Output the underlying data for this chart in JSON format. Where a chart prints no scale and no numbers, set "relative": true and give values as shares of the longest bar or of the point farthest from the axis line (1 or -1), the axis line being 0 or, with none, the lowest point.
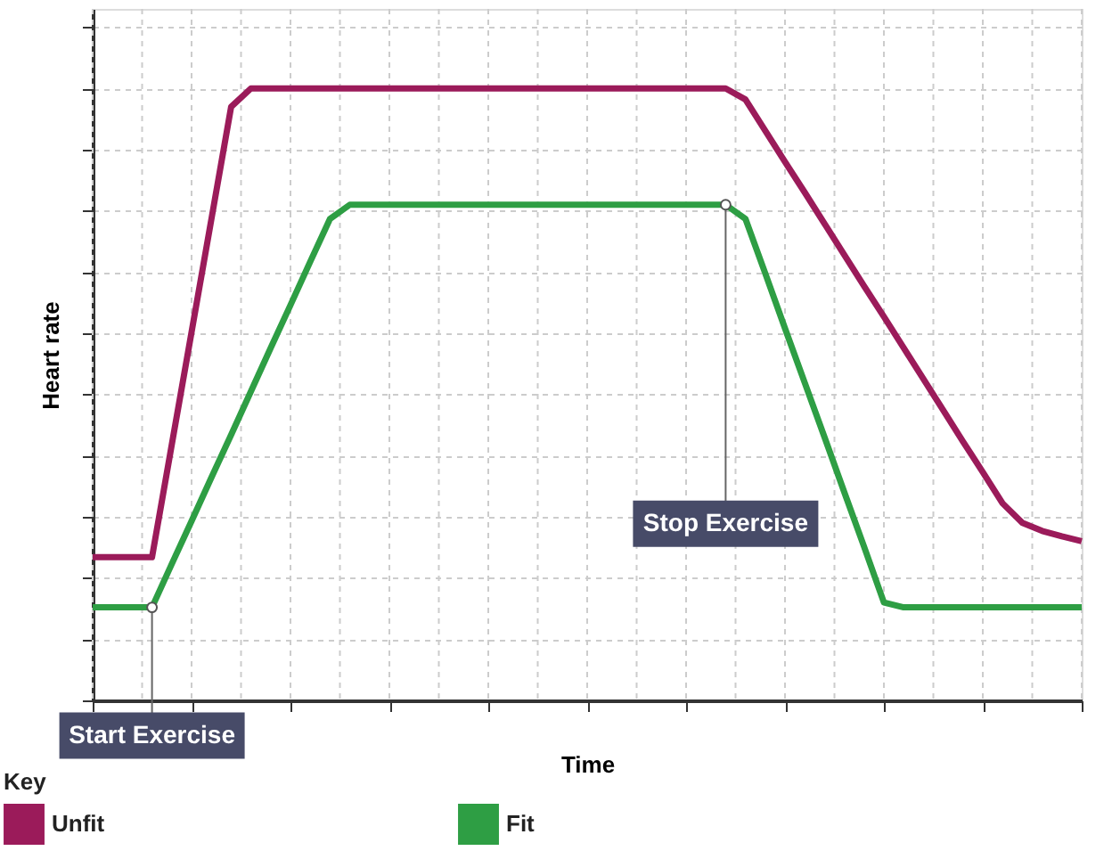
{
  "chart_data": {
    "type": "line",
    "relative": true,
    "xlabel": "Time",
    "ylabel": "Heart rate",
    "legend_title": "Key",
    "legend": "bottom",
    "grid": true,
    "marker": "none",
    "line_style": "solid",
    "categories": [
      null,
      null,
      null,
      null,
      null,
      null,
      null,
      null,
      null,
      null,
      null,
      null,
      null,
      null,
      null,
      null,
      null,
      null,
      null,
      null,
      null,
      null,
      null,
      null,
      null,
      null,
      null,
      null,
      null,
      null,
      null,
      null,
      null,
      null,
      null,
      null,
      null,
      null,
      null,
      null,
      null,
      null,
      null,
      null,
      null,
      null,
      null,
      null,
      null,
      null,
      null
    ],
    "series": [
      {
        "name": "Unfit",
        "color": "#9b1b5a",
        "values": [
          0.234,
          0.234,
          0.234,
          0.234,
          0.418,
          0.602,
          0.786,
          0.97,
          1,
          1,
          1,
          1,
          1,
          1,
          1,
          1,
          1,
          1,
          1,
          1,
          1,
          1,
          1,
          1,
          1,
          1,
          1,
          1,
          1,
          1,
          1,
          1,
          1,
          0.982,
          0.931,
          0.88,
          0.83,
          0.779,
          0.728,
          0.677,
          0.627,
          0.576,
          0.525,
          0.474,
          0.423,
          0.373,
          0.322,
          0.29,
          0.277,
          0.268,
          0.26
        ]
      },
      {
        "name": "Fit",
        "color": "#2e9e44",
        "values": [
          0.152,
          0.152,
          0.152,
          0.152,
          0.223,
          0.293,
          0.364,
          0.434,
          0.505,
          0.576,
          0.646,
          0.717,
          0.787,
          0.81,
          0.81,
          0.81,
          0.81,
          0.81,
          0.81,
          0.81,
          0.81,
          0.81,
          0.81,
          0.81,
          0.81,
          0.81,
          0.81,
          0.81,
          0.81,
          0.81,
          0.81,
          0.81,
          0.81,
          0.787,
          0.698,
          0.608,
          0.519,
          0.43,
          0.34,
          0.251,
          0.16,
          0.152,
          0.152,
          0.152,
          0.152,
          0.152,
          0.152,
          0.152,
          0.152,
          0.152,
          0.152
        ]
      }
    ],
    "annotations": [
      "Start Exercise",
      "Stop Exercise"
    ]
  }
}
